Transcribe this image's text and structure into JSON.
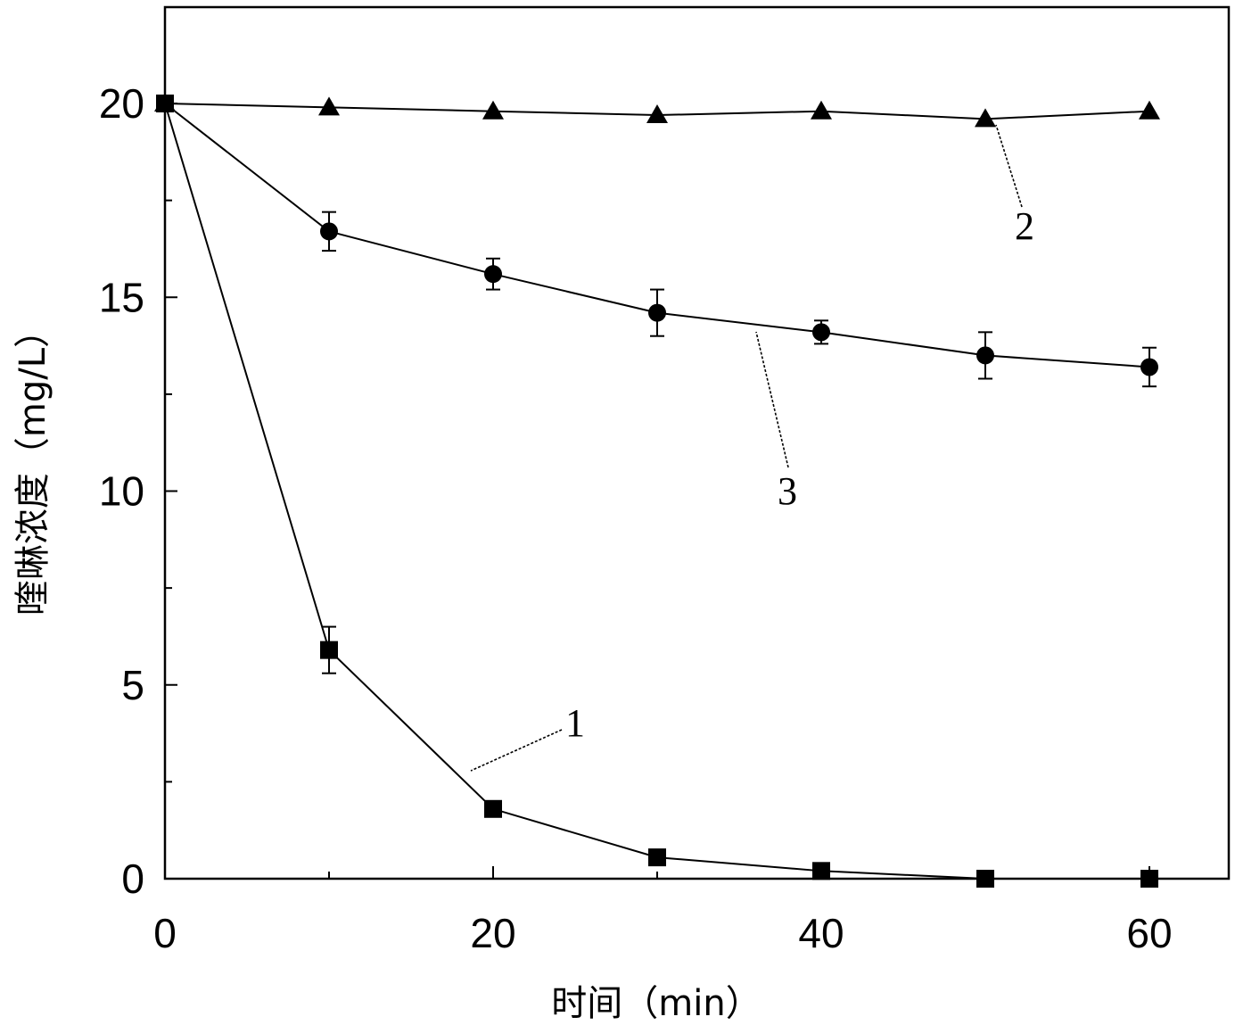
{
  "chart_data": {
    "type": "line",
    "xlabel": "时间（min）",
    "ylabel": "喹啉浓度（mg/L）",
    "xlim": [
      0,
      65
    ],
    "ylim": [
      0,
      22.5
    ],
    "x_ticks": [
      "0",
      "20",
      "40",
      "60"
    ],
    "y_ticks": [
      "0",
      "5",
      "10",
      "15",
      "20"
    ],
    "grid": false,
    "series": [
      {
        "name": "1",
        "marker": "square",
        "x": [
          0,
          10,
          20,
          30,
          40,
          50,
          60
        ],
        "y": [
          20.0,
          5.9,
          1.8,
          0.55,
          0.2,
          0.0,
          0.0
        ],
        "error": [
          0,
          0.6,
          0,
          0,
          0,
          0,
          0
        ]
      },
      {
        "name": "2",
        "marker": "triangle",
        "x": [
          0,
          10,
          20,
          30,
          40,
          50,
          60
        ],
        "y": [
          20.0,
          19.9,
          19.8,
          19.7,
          19.8,
          19.6,
          19.8
        ],
        "error": [
          0,
          0,
          0,
          0,
          0,
          0,
          0
        ]
      },
      {
        "name": "3",
        "marker": "circle",
        "x": [
          0,
          10,
          20,
          30,
          40,
          50,
          60
        ],
        "y": [
          20.0,
          16.7,
          15.6,
          14.6,
          14.1,
          13.5,
          13.2
        ],
        "error": [
          0,
          0.5,
          0.4,
          0.6,
          0.3,
          0.6,
          0.5
        ]
      }
    ]
  }
}
